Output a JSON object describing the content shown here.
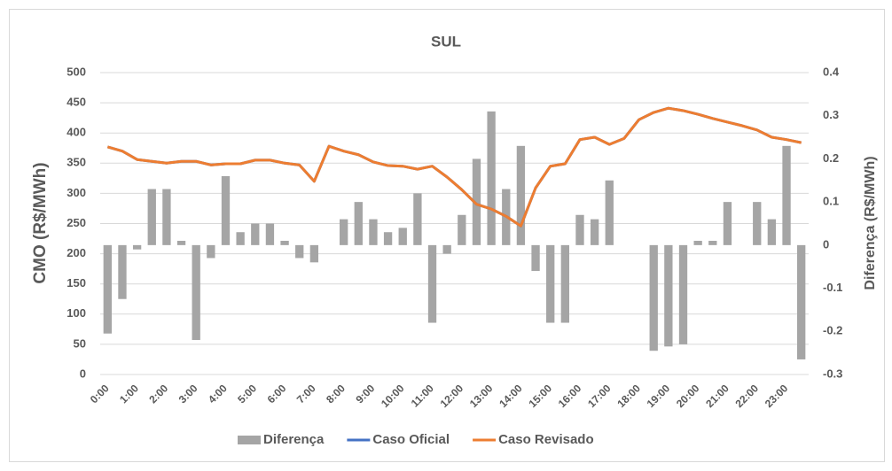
{
  "chart_data": {
    "type": "combo",
    "title": "SUL",
    "ylabel": "CMO (R$/MWh)",
    "y2label": "Diferença (R$/MWh)",
    "categories": [
      "0:00",
      null,
      "1:00",
      null,
      "2:00",
      null,
      "3:00",
      null,
      "4:00",
      null,
      "5:00",
      null,
      "6:00",
      null,
      "7:00",
      null,
      "8:00",
      null,
      "9:00",
      null,
      "10:00",
      null,
      "11:00",
      null,
      "12:00",
      null,
      "13:00",
      null,
      "14:00",
      null,
      "15:00",
      null,
      "16:00",
      null,
      "17:00",
      null,
      "18:00",
      null,
      "19:00",
      null,
      "20:00",
      null,
      "21:00",
      null,
      "22:00",
      null,
      "23:00",
      null
    ],
    "series": [
      {
        "name": "Diferença",
        "type": "bar",
        "axis": "y2",
        "color": "#a5a5a5",
        "values": [
          -0.205,
          -0.125,
          -0.01,
          0.13,
          0.13,
          0.01,
          -0.22,
          -0.03,
          0.16,
          0.03,
          0.05,
          0.05,
          0.01,
          -0.03,
          -0.04,
          0,
          0.06,
          0.1,
          0.06,
          0.03,
          0.04,
          0.12,
          -0.18,
          -0.02,
          0.07,
          0.2,
          0.31,
          0.13,
          0.23,
          -0.06,
          -0.18,
          -0.18,
          0.07,
          0.06,
          0.15,
          0,
          0,
          -0.245,
          -0.235,
          -0.23,
          0.01,
          0.01,
          0.1,
          0,
          0.1,
          0.06,
          0.23,
          -0.265
        ]
      },
      {
        "name": "Caso Oficial",
        "type": "line",
        "color": "#4472c4",
        "values": [
          377,
          370,
          356,
          353,
          350,
          353,
          353,
          347,
          349,
          349,
          355,
          355,
          350,
          347,
          320,
          378,
          370,
          364,
          352,
          346,
          345,
          340,
          345,
          327,
          306,
          282,
          274,
          262,
          246,
          309,
          345,
          349,
          389,
          393,
          381,
          391,
          422,
          434,
          441,
          437,
          431,
          424,
          418,
          412,
          405,
          393,
          389,
          384
        ]
      },
      {
        "name": "Caso Revisado",
        "type": "line",
        "color": "#ed7d31",
        "values": [
          377,
          370,
          356,
          353,
          350,
          353,
          353,
          347,
          349,
          349,
          355,
          355,
          350,
          347,
          320,
          378,
          370,
          364,
          352,
          346,
          345,
          340,
          345,
          327,
          306,
          282,
          274,
          262,
          246,
          309,
          345,
          349,
          389,
          393,
          381,
          391,
          422,
          434,
          441,
          437,
          431,
          424,
          418,
          412,
          405,
          393,
          389,
          384
        ]
      }
    ],
    "ylim": [
      0,
      500
    ],
    "yticks": [
      0,
      50,
      100,
      150,
      200,
      250,
      300,
      350,
      400,
      450,
      500
    ],
    "y2lim": [
      -0.3,
      0.4
    ],
    "y2ticks": [
      -0.3,
      -0.2,
      -0.1,
      0,
      0.1,
      0.2,
      0.3,
      0.4
    ],
    "grid": true,
    "legend": "bottom"
  }
}
